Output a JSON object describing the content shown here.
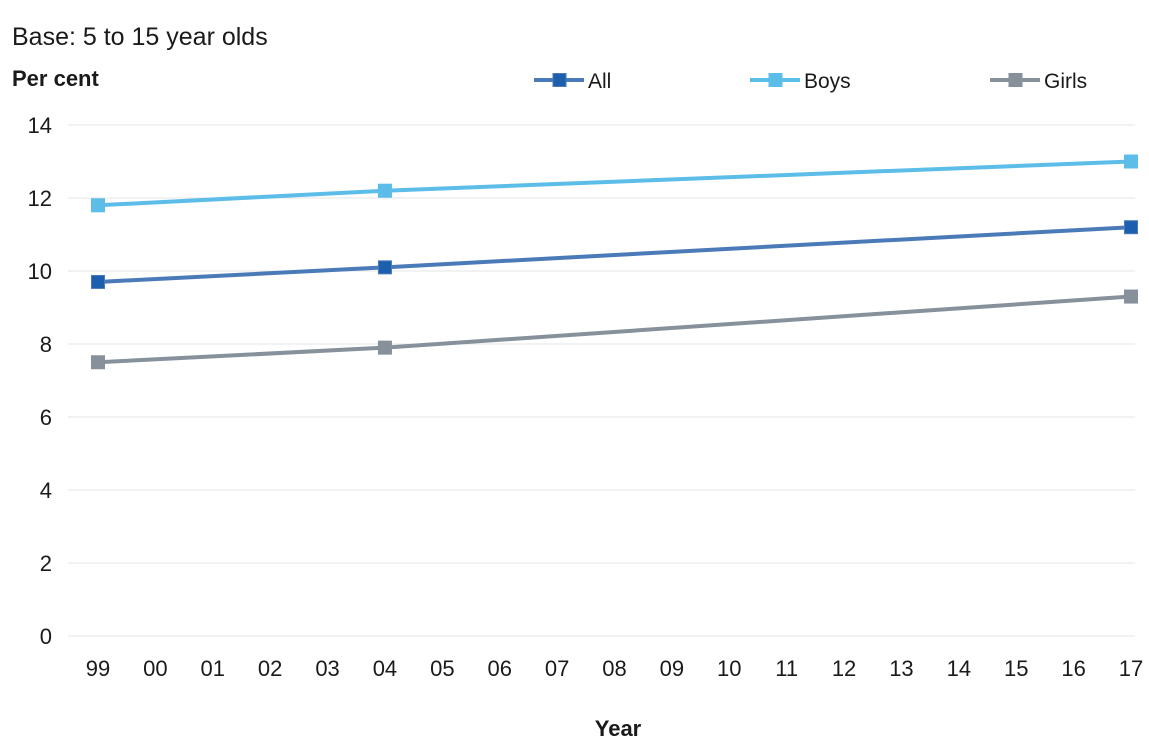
{
  "chart_data": {
    "type": "line",
    "subtitle": "Base: 5 to 15 year olds",
    "ylabel": "Per cent",
    "xlabel": "Year",
    "ylim": [
      0,
      14
    ],
    "yticks": [
      0,
      2,
      4,
      6,
      8,
      10,
      12,
      14
    ],
    "categories": [
      "99",
      "00",
      "01",
      "02",
      "03",
      "04",
      "05",
      "06",
      "07",
      "08",
      "09",
      "10",
      "11",
      "12",
      "13",
      "14",
      "15",
      "16",
      "17"
    ],
    "grid": true,
    "legend_position": "top-right",
    "series": [
      {
        "name": "All",
        "color": "#4a7ab8",
        "marker_color": "#1b5fae",
        "points": [
          {
            "x": "99",
            "y": 9.7
          },
          {
            "x": "04",
            "y": 10.1
          },
          {
            "x": "17",
            "y": 11.2
          }
        ]
      },
      {
        "name": "Boys",
        "color": "#5bbde8",
        "marker_color": "#5bbde8",
        "points": [
          {
            "x": "99",
            "y": 11.8
          },
          {
            "x": "04",
            "y": 12.2
          },
          {
            "x": "17",
            "y": 13.0
          }
        ]
      },
      {
        "name": "Girls",
        "color": "#86919c",
        "marker_color": "#86919c",
        "points": [
          {
            "x": "99",
            "y": 7.5
          },
          {
            "x": "04",
            "y": 7.9
          },
          {
            "x": "17",
            "y": 9.3
          }
        ]
      }
    ]
  }
}
